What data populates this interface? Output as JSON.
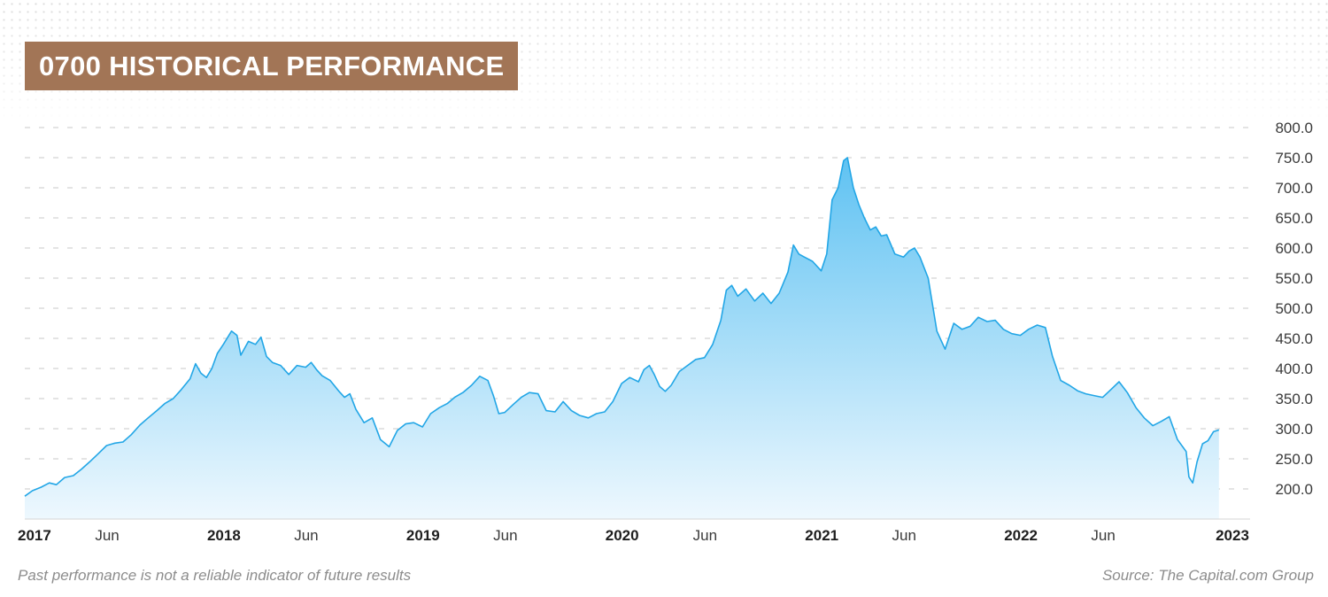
{
  "header": {
    "title": "0700 HISTORICAL PERFORMANCE"
  },
  "footer": {
    "disclaimer": "Past performance is not a reliable indicator of future results",
    "source": "Source: The Capital.com Group"
  },
  "colors": {
    "title_bg": "#a27556",
    "line": "#22a6e6",
    "fill_top": "#5fc2f2",
    "fill_bottom": "#eef8fe",
    "grid": "#c8c8c8"
  },
  "chart_data": {
    "type": "area",
    "title": "0700 HISTORICAL PERFORMANCE",
    "xlabel": "",
    "ylabel": "",
    "ylim": [
      180,
      800
    ],
    "xlim": [
      "2017-01-01",
      "2023-01-01"
    ],
    "grid": true,
    "y_ticks": [
      200,
      250,
      300,
      350,
      400,
      450,
      500,
      550,
      600,
      650,
      700,
      750,
      800
    ],
    "y_tick_labels": [
      "200.0",
      "250.0",
      "300.0",
      "350.0",
      "400.0",
      "450.0",
      "500.0",
      "550.0",
      "600.0",
      "650.0",
      "700.0",
      "750.0",
      "800.0"
    ],
    "x_ticks": [
      {
        "date": "2017-01-01",
        "label": "2017",
        "major": true
      },
      {
        "date": "2017-06-01",
        "label": "Jun",
        "major": false
      },
      {
        "date": "2018-01-01",
        "label": "2018",
        "major": true
      },
      {
        "date": "2018-06-01",
        "label": "Jun",
        "major": false
      },
      {
        "date": "2019-01-01",
        "label": "2019",
        "major": true
      },
      {
        "date": "2019-06-01",
        "label": "Jun",
        "major": false
      },
      {
        "date": "2020-01-01",
        "label": "2020",
        "major": true
      },
      {
        "date": "2020-06-01",
        "label": "Jun",
        "major": false
      },
      {
        "date": "2021-01-01",
        "label": "2021",
        "major": true
      },
      {
        "date": "2021-06-01",
        "label": "Jun",
        "major": false
      },
      {
        "date": "2022-01-01",
        "label": "2022",
        "major": true
      },
      {
        "date": "2022-06-01",
        "label": "Jun",
        "major": false
      },
      {
        "date": "2023-01-01",
        "label": "2023",
        "major": true
      }
    ],
    "series": [
      {
        "points": [
          [
            "2017-01-01",
            188
          ],
          [
            "2017-01-15",
            197
          ],
          [
            "2017-01-31",
            203
          ],
          [
            "2017-02-15",
            210
          ],
          [
            "2017-02-28",
            207
          ],
          [
            "2017-03-15",
            219
          ],
          [
            "2017-03-31",
            222
          ],
          [
            "2017-04-15",
            233
          ],
          [
            "2017-04-30",
            245
          ],
          [
            "2017-05-15",
            258
          ],
          [
            "2017-05-31",
            272
          ],
          [
            "2017-06-15",
            276
          ],
          [
            "2017-06-30",
            278
          ],
          [
            "2017-07-15",
            290
          ],
          [
            "2017-07-31",
            306
          ],
          [
            "2017-08-15",
            318
          ],
          [
            "2017-08-31",
            330
          ],
          [
            "2017-09-15",
            342
          ],
          [
            "2017-09-30",
            350
          ],
          [
            "2017-10-15",
            365
          ],
          [
            "2017-10-31",
            383
          ],
          [
            "2017-11-10",
            408
          ],
          [
            "2017-11-20",
            392
          ],
          [
            "2017-11-30",
            385
          ],
          [
            "2017-12-10",
            400
          ],
          [
            "2017-12-20",
            425
          ],
          [
            "2017-12-31",
            440
          ],
          [
            "2018-01-15",
            462
          ],
          [
            "2018-01-25",
            455
          ],
          [
            "2018-02-01",
            422
          ],
          [
            "2018-02-15",
            445
          ],
          [
            "2018-02-28",
            440
          ],
          [
            "2018-03-10",
            452
          ],
          [
            "2018-03-20",
            420
          ],
          [
            "2018-03-31",
            410
          ],
          [
            "2018-04-15",
            405
          ],
          [
            "2018-04-30",
            390
          ],
          [
            "2018-05-15",
            405
          ],
          [
            "2018-05-31",
            402
          ],
          [
            "2018-06-10",
            410
          ],
          [
            "2018-06-20",
            398
          ],
          [
            "2018-06-30",
            388
          ],
          [
            "2018-07-15",
            380
          ],
          [
            "2018-07-31",
            362
          ],
          [
            "2018-08-10",
            352
          ],
          [
            "2018-08-20",
            358
          ],
          [
            "2018-08-31",
            332
          ],
          [
            "2018-09-15",
            310
          ],
          [
            "2018-09-30",
            318
          ],
          [
            "2018-10-15",
            282
          ],
          [
            "2018-10-31",
            270
          ],
          [
            "2018-11-15",
            297
          ],
          [
            "2018-11-30",
            308
          ],
          [
            "2018-12-15",
            310
          ],
          [
            "2018-12-31",
            303
          ],
          [
            "2019-01-15",
            325
          ],
          [
            "2019-01-31",
            335
          ],
          [
            "2019-02-15",
            342
          ],
          [
            "2019-02-28",
            352
          ],
          [
            "2019-03-15",
            360
          ],
          [
            "2019-03-31",
            372
          ],
          [
            "2019-04-15",
            387
          ],
          [
            "2019-04-30",
            380
          ],
          [
            "2019-05-10",
            355
          ],
          [
            "2019-05-20",
            325
          ],
          [
            "2019-05-31",
            327
          ],
          [
            "2019-06-15",
            340
          ],
          [
            "2019-06-30",
            352
          ],
          [
            "2019-07-15",
            360
          ],
          [
            "2019-07-31",
            358
          ],
          [
            "2019-08-15",
            330
          ],
          [
            "2019-08-31",
            328
          ],
          [
            "2019-09-15",
            345
          ],
          [
            "2019-09-30",
            330
          ],
          [
            "2019-10-15",
            322
          ],
          [
            "2019-10-31",
            318
          ],
          [
            "2019-11-15",
            325
          ],
          [
            "2019-11-30",
            328
          ],
          [
            "2019-12-15",
            345
          ],
          [
            "2019-12-31",
            375
          ],
          [
            "2020-01-15",
            385
          ],
          [
            "2020-01-31",
            378
          ],
          [
            "2020-02-10",
            398
          ],
          [
            "2020-02-20",
            405
          ],
          [
            "2020-02-29",
            390
          ],
          [
            "2020-03-10",
            370
          ],
          [
            "2020-03-20",
            362
          ],
          [
            "2020-03-31",
            372
          ],
          [
            "2020-04-15",
            395
          ],
          [
            "2020-04-30",
            405
          ],
          [
            "2020-05-15",
            415
          ],
          [
            "2020-05-31",
            418
          ],
          [
            "2020-06-15",
            440
          ],
          [
            "2020-06-30",
            480
          ],
          [
            "2020-07-10",
            530
          ],
          [
            "2020-07-20",
            538
          ],
          [
            "2020-07-31",
            520
          ],
          [
            "2020-08-15",
            532
          ],
          [
            "2020-08-31",
            512
          ],
          [
            "2020-09-15",
            525
          ],
          [
            "2020-09-30",
            508
          ],
          [
            "2020-10-15",
            525
          ],
          [
            "2020-10-31",
            560
          ],
          [
            "2020-11-10",
            605
          ],
          [
            "2020-11-20",
            590
          ],
          [
            "2020-11-30",
            585
          ],
          [
            "2020-12-15",
            578
          ],
          [
            "2020-12-31",
            562
          ],
          [
            "2021-01-10",
            590
          ],
          [
            "2021-01-20",
            680
          ],
          [
            "2021-01-31",
            700
          ],
          [
            "2021-02-10",
            745
          ],
          [
            "2021-02-17",
            750
          ],
          [
            "2021-02-28",
            700
          ],
          [
            "2021-03-10",
            672
          ],
          [
            "2021-03-20",
            650
          ],
          [
            "2021-03-31",
            630
          ],
          [
            "2021-04-10",
            635
          ],
          [
            "2021-04-20",
            620
          ],
          [
            "2021-04-30",
            622
          ],
          [
            "2021-05-15",
            590
          ],
          [
            "2021-05-31",
            585
          ],
          [
            "2021-06-10",
            595
          ],
          [
            "2021-06-20",
            600
          ],
          [
            "2021-06-30",
            585
          ],
          [
            "2021-07-15",
            550
          ],
          [
            "2021-07-31",
            462
          ],
          [
            "2021-08-15",
            432
          ],
          [
            "2021-08-31",
            475
          ],
          [
            "2021-09-15",
            465
          ],
          [
            "2021-09-30",
            470
          ],
          [
            "2021-10-15",
            485
          ],
          [
            "2021-10-31",
            478
          ],
          [
            "2021-11-15",
            480
          ],
          [
            "2021-11-30",
            465
          ],
          [
            "2021-12-15",
            458
          ],
          [
            "2021-12-31",
            455
          ],
          [
            "2022-01-15",
            465
          ],
          [
            "2022-01-31",
            472
          ],
          [
            "2022-02-15",
            468
          ],
          [
            "2022-02-28",
            420
          ],
          [
            "2022-03-15",
            380
          ],
          [
            "2022-03-31",
            372
          ],
          [
            "2022-04-15",
            363
          ],
          [
            "2022-04-30",
            358
          ],
          [
            "2022-05-15",
            355
          ],
          [
            "2022-05-31",
            352
          ],
          [
            "2022-06-15",
            365
          ],
          [
            "2022-06-30",
            378
          ],
          [
            "2022-07-15",
            360
          ],
          [
            "2022-07-31",
            335
          ],
          [
            "2022-08-15",
            318
          ],
          [
            "2022-08-31",
            305
          ],
          [
            "2022-09-15",
            312
          ],
          [
            "2022-09-30",
            320
          ],
          [
            "2022-10-15",
            282
          ],
          [
            "2022-10-31",
            262
          ],
          [
            "2022-11-05",
            220
          ],
          [
            "2022-11-12",
            210
          ],
          [
            "2022-11-20",
            245
          ],
          [
            "2022-11-30",
            275
          ],
          [
            "2022-12-10",
            280
          ],
          [
            "2022-12-20",
            295
          ],
          [
            "2022-12-30",
            298
          ]
        ]
      }
    ]
  }
}
